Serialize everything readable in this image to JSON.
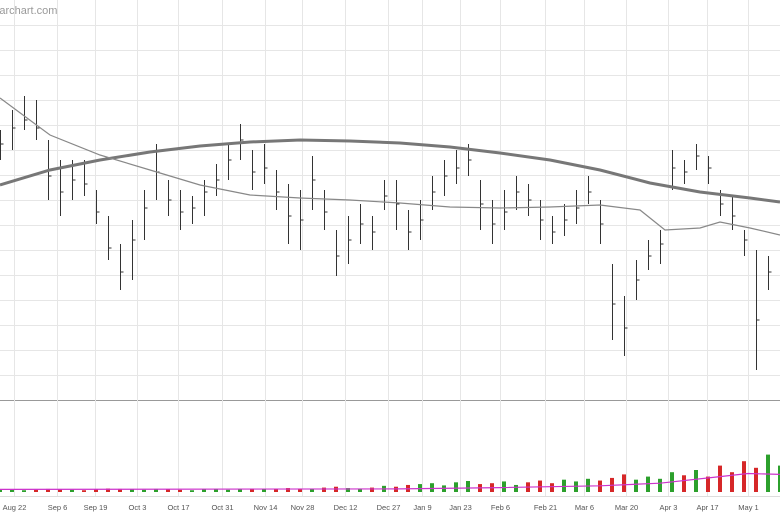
{
  "chart_data": {
    "type": "ohlc",
    "watermark": "Barchart.com",
    "x": [
      0,
      3,
      6,
      9,
      12,
      15,
      18,
      21,
      24,
      27,
      30,
      33,
      36,
      39,
      42,
      45,
      48,
      51,
      54,
      57,
      60,
      63,
      66,
      69,
      72,
      75,
      78,
      81,
      84,
      87,
      90,
      93,
      96,
      99,
      102,
      105,
      108,
      111,
      114,
      117,
      120,
      123,
      126,
      129,
      132,
      135,
      138,
      141,
      144,
      147,
      150,
      153,
      156,
      159,
      162,
      165,
      168,
      171,
      174,
      177,
      180,
      183,
      186,
      189,
      192,
      195
    ],
    "high": [
      67.5,
      72.5,
      76,
      75,
      65,
      60,
      60,
      60,
      52.5,
      46,
      39,
      45,
      52.5,
      64,
      55,
      52.5,
      51,
      55,
      59,
      64,
      69,
      62.5,
      64,
      57.5,
      54,
      52.5,
      61,
      52.5,
      42.5,
      46,
      49,
      46,
      55,
      55,
      47.5,
      50,
      56,
      60,
      62.5,
      64,
      55,
      50,
      52.5,
      56,
      54,
      50,
      46,
      49,
      52.5,
      56,
      50,
      34,
      26,
      35,
      40,
      42.5,
      62.5,
      60,
      64,
      61,
      52.5,
      51,
      42.5,
      37.5,
      36,
      35
    ],
    "low": [
      60,
      62.5,
      67.5,
      65,
      50,
      46,
      50,
      51,
      44,
      35,
      27.5,
      30,
      40,
      50,
      46,
      42.5,
      44,
      46,
      51,
      55,
      60,
      52.5,
      54,
      47.5,
      39,
      37.5,
      47.5,
      42.5,
      31,
      34,
      39,
      37.5,
      47.5,
      42.5,
      37.5,
      40,
      47.5,
      51,
      54,
      56,
      42.5,
      39,
      42.5,
      47.5,
      46,
      40,
      39,
      41,
      44,
      49,
      39,
      15,
      11,
      25,
      32.5,
      34,
      52.5,
      54,
      57.5,
      54,
      46,
      42.5,
      36,
      7.5,
      27.5,
      30
    ],
    "close": [
      64,
      68,
      70,
      68,
      56,
      52,
      55,
      54,
      47,
      38,
      32,
      40,
      48,
      57,
      50,
      47,
      48,
      52,
      55,
      60,
      65,
      57,
      58,
      52,
      46,
      45,
      55,
      47,
      36,
      40,
      44,
      42,
      51,
      49,
      42,
      45,
      52,
      56,
      58,
      60,
      49,
      44,
      47,
      52,
      50,
      45,
      42,
      45,
      48,
      52,
      44,
      24,
      18,
      30,
      36,
      39,
      58,
      57,
      61,
      58,
      49,
      46,
      40,
      20,
      32,
      33
    ],
    "bar_color": "#333333",
    "xlim": [
      0,
      195
    ],
    "ylim": [
      0,
      100
    ],
    "yticks": [
      6.25,
      12.5,
      18.75,
      25,
      31.25,
      37.5,
      43.75,
      50,
      56.25,
      62.5,
      68.75,
      75,
      81.25,
      87.5,
      93.75
    ],
    "xticks": [
      {
        "value": 3.5,
        "label": "Aug 22"
      },
      {
        "value": 14.25,
        "label": "Sep 6"
      },
      {
        "value": 23.75,
        "label": "Sep 19"
      },
      {
        "value": 34.25,
        "label": "Oct 3"
      },
      {
        "value": 44.5,
        "label": "Oct 17"
      },
      {
        "value": 55.5,
        "label": "Oct 31"
      },
      {
        "value": 66.25,
        "label": "Nov 14"
      },
      {
        "value": 75.5,
        "label": "Nov 28"
      },
      {
        "value": 86.25,
        "label": "Dec 12"
      },
      {
        "value": 97,
        "label": "Dec 27"
      },
      {
        "value": 105.5,
        "label": "Jan 9"
      },
      {
        "value": 115,
        "label": "Jan 23"
      },
      {
        "value": 125,
        "label": "Feb 6"
      },
      {
        "value": 136.25,
        "label": "Feb 21"
      },
      {
        "value": 146,
        "label": "Mar 6"
      },
      {
        "value": 156.5,
        "label": "Mar 20"
      },
      {
        "value": 167,
        "label": "Apr 3"
      },
      {
        "value": 176.75,
        "label": "Apr 17"
      },
      {
        "value": 187,
        "label": "May 1"
      }
    ],
    "grid": true,
    "averages": [
      {
        "color": "#777777",
        "width": 3,
        "x": [
          0,
          12.5,
          25,
          37.5,
          50,
          62.5,
          75,
          87.5,
          100,
          112.5,
          125,
          137.5,
          150,
          162.5,
          175,
          187.5,
          195
        ],
        "values": [
          53.75,
          57.5,
          60,
          62,
          63.5,
          64.5,
          65,
          64.75,
          64.25,
          63.25,
          61.75,
          60,
          57.5,
          54.25,
          52,
          50.5,
          49.5
        ]
      },
      {
        "color": "#888888",
        "width": 1.2,
        "x": [
          0,
          12.5,
          25,
          37.5,
          50,
          62.5,
          75,
          87.5,
          100,
          112.5,
          125,
          137.5,
          150,
          160,
          166.25,
          175,
          180,
          187.5,
          195
        ],
        "values": [
          75.5,
          66.25,
          61.25,
          57.5,
          53.75,
          51.25,
          50.5,
          50,
          49.25,
          48.25,
          48,
          48.25,
          48.75,
          47.5,
          42.5,
          43,
          44.5,
          43,
          41.25
        ]
      }
    ],
    "volume": {
      "values": [
        5,
        6,
        4,
        5,
        7,
        6,
        5,
        4,
        6,
        8,
        7,
        6,
        5,
        7,
        6,
        5,
        4,
        6,
        7,
        5,
        6,
        8,
        7,
        6,
        9,
        8,
        7,
        10,
        12,
        9,
        8,
        10,
        14,
        12,
        16,
        18,
        20,
        15,
        22,
        25,
        18,
        20,
        24,
        16,
        22,
        26,
        20,
        28,
        24,
        30,
        26,
        32,
        40,
        28,
        35,
        30,
        45,
        38,
        50,
        35,
        60,
        45,
        70,
        55,
        85,
        60
      ],
      "ylim": [
        0,
        100
      ],
      "up_color": "#2ca02c",
      "down_color": "#d62728",
      "average": {
        "color": "#cc33cc",
        "x": [
          0,
          100,
          125,
          150,
          165,
          180,
          187,
          195
        ],
        "values": [
          6,
          7,
          10,
          14,
          20,
          35,
          42,
          40
        ]
      }
    }
  }
}
